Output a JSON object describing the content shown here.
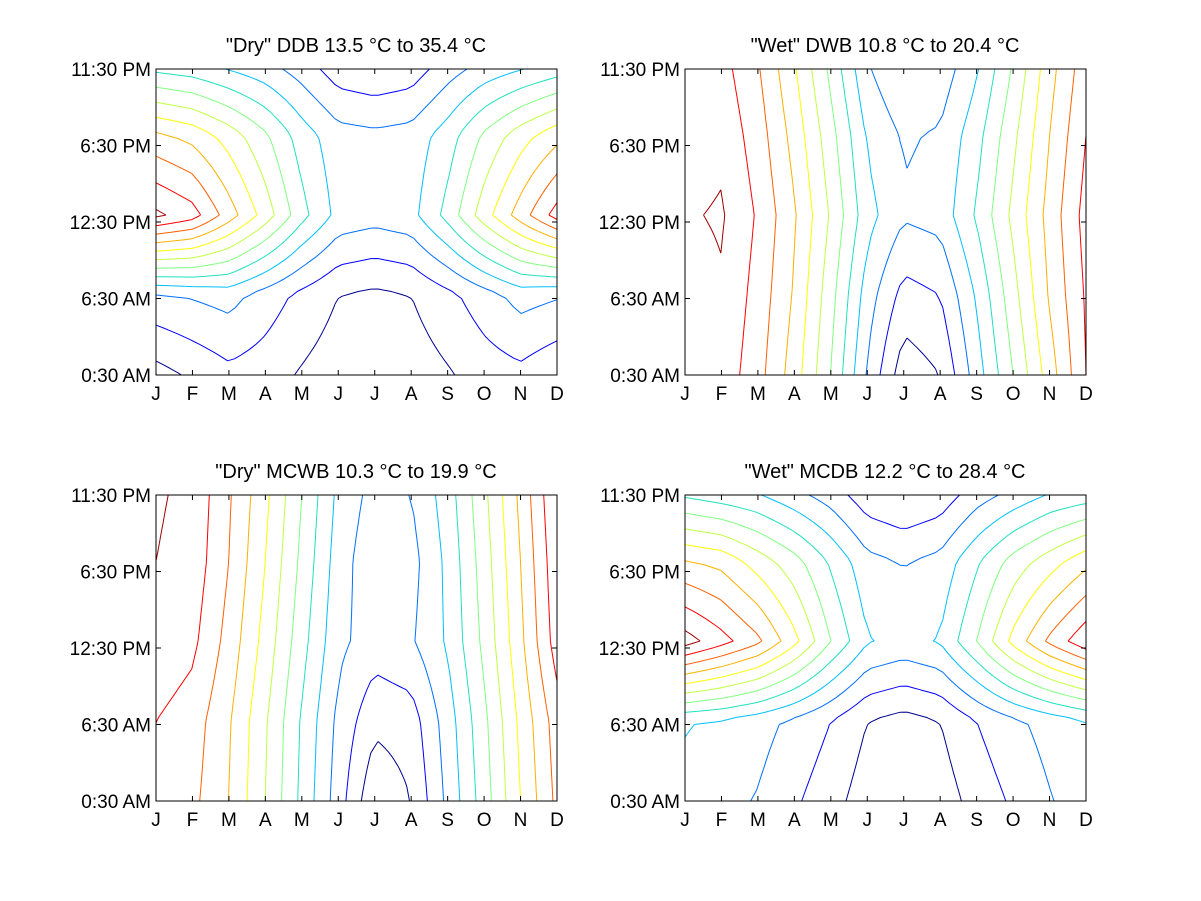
{
  "figure": {
    "background": "#ffffff",
    "contour_colors": [
      "#00008f",
      "#0000ff",
      "#0070ff",
      "#00bfff",
      "#20e0c0",
      "#80ff80",
      "#c0ff40",
      "#ffff00",
      "#ffb000",
      "#ff6000",
      "#ff0000",
      "#a00000"
    ]
  },
  "chart_data": [
    {
      "type": "contour",
      "title": "\"Dry\" DDB  13.5 °C to  35.4 °C",
      "range": [
        13.5,
        35.4
      ],
      "x_ticks": [
        "J",
        "F",
        "M",
        "A",
        "M",
        "J",
        "J",
        "A",
        "S",
        "O",
        "N",
        "D"
      ],
      "y_ticks": [
        "11:30 PM",
        "6:30 PM",
        "12:30 PM",
        "6:30 AM",
        "0:30 AM"
      ],
      "x": [
        1,
        2,
        3,
        4,
        5,
        6,
        7,
        8,
        9,
        10,
        11,
        12
      ],
      "y": [
        0.5,
        6.5,
        12.5,
        18.5,
        23.5
      ],
      "levels": [
        15.2,
        17.0,
        18.8,
        20.6,
        22.4,
        24.2,
        26.0,
        27.8,
        29.6,
        31.4,
        33.2,
        35.0
      ],
      "z": [
        [
          14.5,
          15.5,
          16.5,
          16.0,
          15.0,
          14.2,
          14.0,
          14.2,
          15.0,
          16.0,
          16.5,
          15.5
        ],
        [
          18.5,
          19.0,
          19.5,
          18.0,
          16.5,
          15.2,
          14.8,
          15.2,
          16.5,
          18.0,
          19.5,
          19.0
        ],
        [
          35.4,
          34.0,
          30.5,
          27.0,
          23.0,
          20.0,
          19.5,
          20.0,
          23.0,
          27.0,
          30.5,
          34.0
        ],
        [
          30.0,
          29.0,
          27.0,
          24.5,
          21.5,
          19.5,
          19.2,
          19.5,
          21.5,
          24.5,
          27.0,
          29.0
        ],
        [
          22.0,
          21.5,
          20.5,
          19.5,
          18.0,
          16.0,
          15.5,
          16.0,
          18.0,
          19.5,
          20.5,
          21.5
        ]
      ]
    },
    {
      "type": "contour",
      "title": "\"Wet\" DWB  10.8 °C to  20.4 °C",
      "range": [
        10.8,
        20.4
      ],
      "x_ticks": [
        "J",
        "F",
        "M",
        "A",
        "M",
        "J",
        "J",
        "A",
        "S",
        "O",
        "N",
        "D"
      ],
      "y_ticks": [
        "11:30 PM",
        "6:30 PM",
        "12:30 PM",
        "6:30 AM",
        "0:30 AM"
      ],
      "x": [
        1,
        2,
        3,
        4,
        5,
        6,
        7,
        8,
        9,
        10,
        11,
        12
      ],
      "y": [
        0.5,
        6.5,
        12.5,
        18.5,
        23.5
      ],
      "levels": [
        11.5,
        12.3,
        13.1,
        13.9,
        14.7,
        15.5,
        16.3,
        17.1,
        17.9,
        18.7,
        19.5,
        20.3
      ],
      "z": [
        [
          19.5,
          20.0,
          19.0,
          17.5,
          15.5,
          13.0,
          11.0,
          11.5,
          13.5,
          15.5,
          17.5,
          19.5
        ],
        [
          19.8,
          20.2,
          19.2,
          17.8,
          15.8,
          13.5,
          12.0,
          12.3,
          14.0,
          16.0,
          18.0,
          19.6
        ],
        [
          20.2,
          20.4,
          19.4,
          18.0,
          16.2,
          14.2,
          13.2,
          13.4,
          14.8,
          16.5,
          18.2,
          19.8
        ],
        [
          19.8,
          20.1,
          19.1,
          17.6,
          15.8,
          13.8,
          13.0,
          13.2,
          14.4,
          16.1,
          17.9,
          19.5
        ],
        [
          19.5,
          19.8,
          18.8,
          17.2,
          15.3,
          13.2,
          12.3,
          12.6,
          13.8,
          15.6,
          17.6,
          19.2
        ]
      ]
    },
    {
      "type": "contour",
      "title": "\"Dry\" MCWB  10.3 °C to  19.9 °C",
      "range": [
        10.3,
        19.9
      ],
      "x_ticks": [
        "J",
        "F",
        "M",
        "A",
        "M",
        "J",
        "J",
        "A",
        "S",
        "O",
        "N",
        "D"
      ],
      "y_ticks": [
        "11:30 PM",
        "6:30 PM",
        "12:30 PM",
        "6:30 AM",
        "0:30 AM"
      ],
      "x": [
        1,
        2,
        3,
        4,
        5,
        6,
        7,
        8,
        9,
        10,
        11,
        12
      ],
      "y": [
        0.5,
        6.5,
        12.5,
        18.5,
        23.5
      ],
      "levels": [
        11.0,
        11.8,
        12.6,
        13.4,
        14.2,
        15.0,
        15.8,
        16.6,
        17.4,
        18.2,
        19.0,
        19.8
      ],
      "z": [
        [
          18.8,
          18.4,
          17.4,
          15.8,
          14.0,
          12.2,
          10.3,
          11.0,
          12.8,
          14.6,
          16.6,
          18.4
        ],
        [
          19.0,
          18.6,
          17.5,
          15.9,
          14.1,
          12.4,
          11.2,
          11.4,
          13.0,
          14.8,
          16.8,
          18.6
        ],
        [
          19.6,
          19.2,
          17.9,
          16.3,
          14.5,
          12.8,
          12.2,
          12.5,
          13.5,
          15.2,
          17.2,
          19.4
        ],
        [
          19.8,
          19.5,
          18.2,
          16.6,
          14.8,
          13.0,
          12.0,
          12.3,
          13.6,
          15.4,
          17.4,
          19.6
        ],
        [
          19.9,
          19.6,
          18.3,
          16.8,
          15.0,
          13.2,
          12.3,
          12.6,
          13.8,
          15.6,
          17.6,
          19.8
        ]
      ]
    },
    {
      "type": "contour",
      "title": "\"Wet\" MCDB  12.2 °C to  28.4 °C",
      "range": [
        12.2,
        28.4
      ],
      "x_ticks": [
        "J",
        "F",
        "M",
        "A",
        "M",
        "J",
        "J",
        "A",
        "S",
        "O",
        "N",
        "D"
      ],
      "y_ticks": [
        "11:30 PM",
        "6:30 PM",
        "12:30 PM",
        "6:30 AM",
        "0:30 AM"
      ],
      "x": [
        1,
        2,
        3,
        4,
        5,
        6,
        7,
        8,
        9,
        10,
        11,
        12
      ],
      "y": [
        0.5,
        6.5,
        12.5,
        18.5,
        23.5
      ],
      "levels": [
        13.5,
        14.8,
        16.1,
        17.4,
        18.7,
        20.0,
        21.3,
        22.6,
        23.9,
        25.2,
        26.5,
        27.8
      ],
      "z": [
        [
          17.0,
          16.5,
          16.0,
          15.0,
          14.0,
          12.8,
          12.5,
          12.8,
          14.0,
          15.0,
          16.0,
          16.8
        ],
        [
          17.5,
          17.2,
          16.6,
          15.8,
          14.8,
          13.5,
          13.0,
          13.5,
          14.8,
          15.8,
          16.6,
          17.3
        ],
        [
          28.4,
          27.0,
          25.5,
          23.0,
          20.0,
          17.5,
          17.0,
          17.5,
          20.0,
          23.0,
          25.5,
          27.5
        ],
        [
          24.0,
          23.5,
          22.0,
          20.5,
          18.5,
          16.5,
          16.0,
          16.5,
          18.5,
          20.5,
          22.0,
          23.5
        ],
        [
          18.5,
          18.0,
          17.5,
          16.5,
          15.5,
          14.0,
          13.5,
          14.0,
          15.5,
          16.5,
          17.5,
          18.0
        ]
      ]
    }
  ]
}
